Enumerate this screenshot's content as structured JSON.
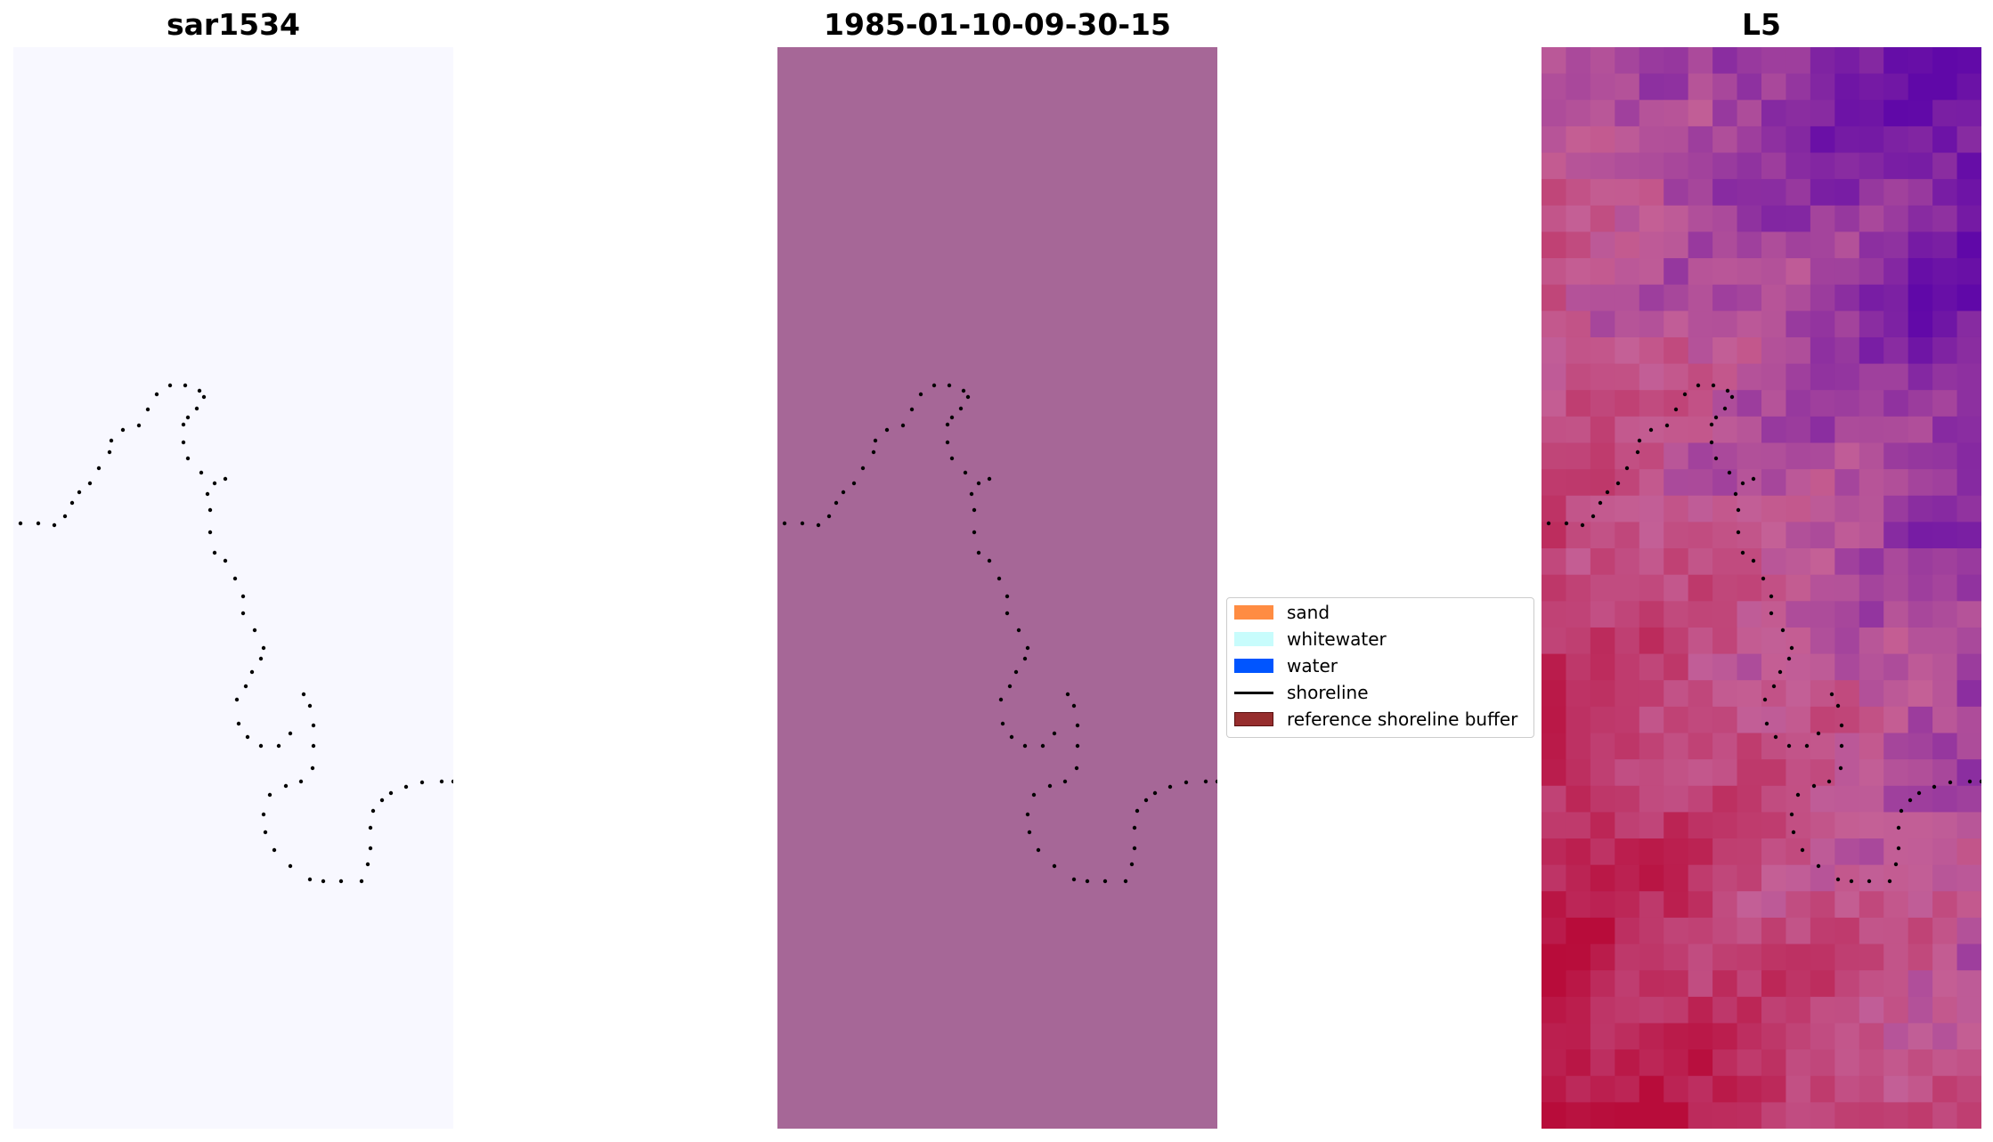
{
  "panels": [
    {
      "title": "sar1534",
      "fill": "#f8f8ff"
    },
    {
      "title": "1985-01-10-09-30-15",
      "fill": "#a66797"
    },
    {
      "title": "L5"
    }
  ],
  "legend": [
    {
      "label": "sand",
      "color": "#ff8c42",
      "kind": "patch"
    },
    {
      "label": "whitewater",
      "color": "#c8fcfc",
      "kind": "patch"
    },
    {
      "label": "water",
      "color": "#0055ff",
      "kind": "patch"
    },
    {
      "label": "shoreline",
      "color": "#000000",
      "kind": "line"
    },
    {
      "label": "reference shoreline buffer",
      "color": "#962d2d",
      "kind": "patch"
    }
  ]
}
